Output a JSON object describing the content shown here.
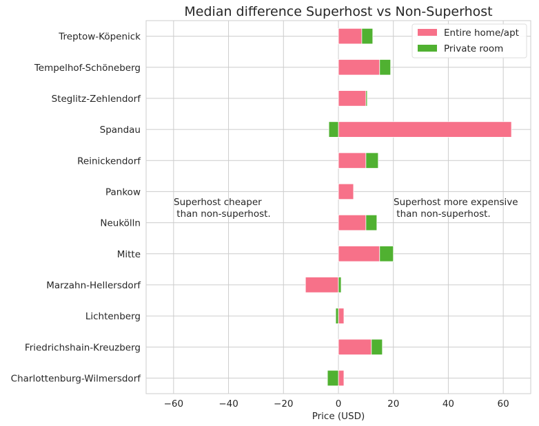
{
  "chart_data": {
    "type": "bar",
    "orientation": "horizontal",
    "stacked": true,
    "title": "Median difference Superhost vs Non-Superhost",
    "xlabel": "Price (USD)",
    "ylabel": "",
    "xlim": [
      -70,
      70
    ],
    "xticks": [
      -60,
      -40,
      -20,
      0,
      20,
      40,
      60
    ],
    "xtick_labels": [
      "−60",
      "−40",
      "−20",
      "0",
      "20",
      "40",
      "60"
    ],
    "grid": true,
    "legend_position": "top-right",
    "categories": [
      "Charlottenburg-Wilmersdorf",
      "Friedrichshain-Kreuzberg",
      "Lichtenberg",
      "Marzahn-Hellersdorf",
      "Mitte",
      "Neukölln",
      "Pankow",
      "Reinickendorf",
      "Spandau",
      "Steglitz-Zehlendorf",
      "Tempelhof-Schöneberg",
      "Treptow-Köpenick"
    ],
    "series": [
      {
        "name": "Entire home/apt",
        "color": "#f77189",
        "values": [
          2,
          12,
          2,
          -12,
          15,
          10,
          5.5,
          10,
          63,
          10,
          15,
          8.5
        ]
      },
      {
        "name": "Private room",
        "color": "#50b131",
        "values": [
          -4,
          4,
          -1,
          1,
          5,
          4,
          0,
          4.5,
          -3.5,
          0.5,
          4,
          4
        ]
      }
    ],
    "annotations": [
      {
        "text": "Superhost cheaper\n than non-superhost."
      },
      {
        "text": "Superhost more expensive\n than non-superhost."
      }
    ]
  }
}
